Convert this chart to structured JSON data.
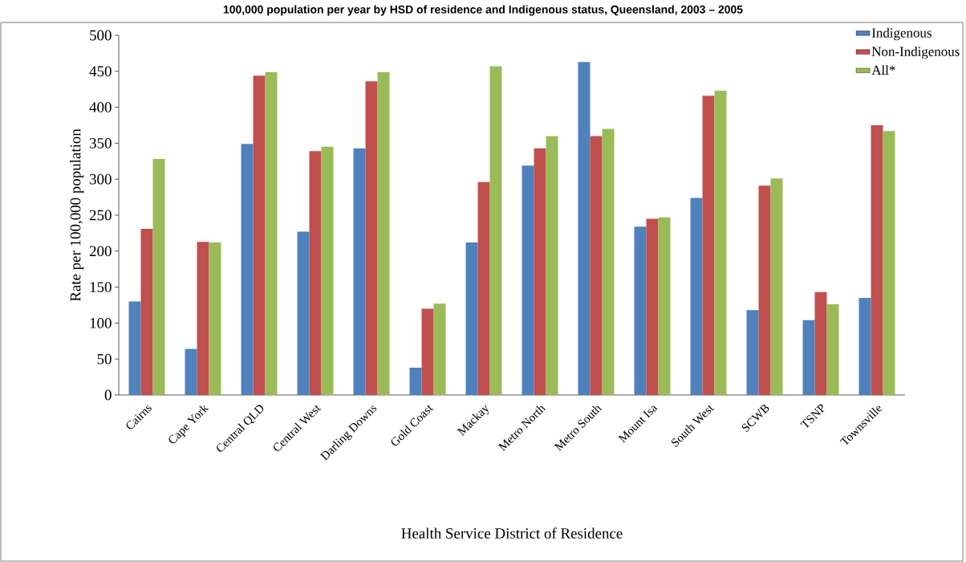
{
  "chart_data": {
    "type": "bar",
    "title": "100,000 population per year by HSD of residence and Indigenous status, Queensland, 2003 – 2005",
    "xlabel": "Health Service District of Residence",
    "ylabel": "Rate per 100,000 population",
    "categories": [
      "Cairns",
      "Cape York",
      "Central QLD",
      "Central West",
      "Darling Downs",
      "Gold Coast",
      "Mackay",
      "Metro North",
      "Metro South",
      "Mount Isa",
      "South West",
      "SCWB",
      "TSNP",
      "Townsville"
    ],
    "series": [
      {
        "name": "Indigenous",
        "color": "#4f81bd",
        "values": [
          130,
          64,
          349,
          227,
          343,
          38,
          212,
          319,
          463,
          234,
          274,
          118,
          104,
          135
        ]
      },
      {
        "name": "Non-Indigenous",
        "color": "#c0504d",
        "values": [
          231,
          213,
          444,
          339,
          436,
          120,
          296,
          343,
          360,
          245,
          416,
          291,
          143,
          375
        ]
      },
      {
        "name": "All*",
        "color": "#9bbb59",
        "values": [
          328,
          212,
          449,
          345,
          449,
          127,
          457,
          360,
          370,
          247,
          423,
          301,
          126,
          367
        ]
      }
    ],
    "ylim": [
      0,
      500
    ],
    "yticks": [
      0,
      50,
      100,
      150,
      200,
      250,
      300,
      350,
      400,
      450,
      500
    ],
    "grid": false,
    "legend": "top right"
  }
}
